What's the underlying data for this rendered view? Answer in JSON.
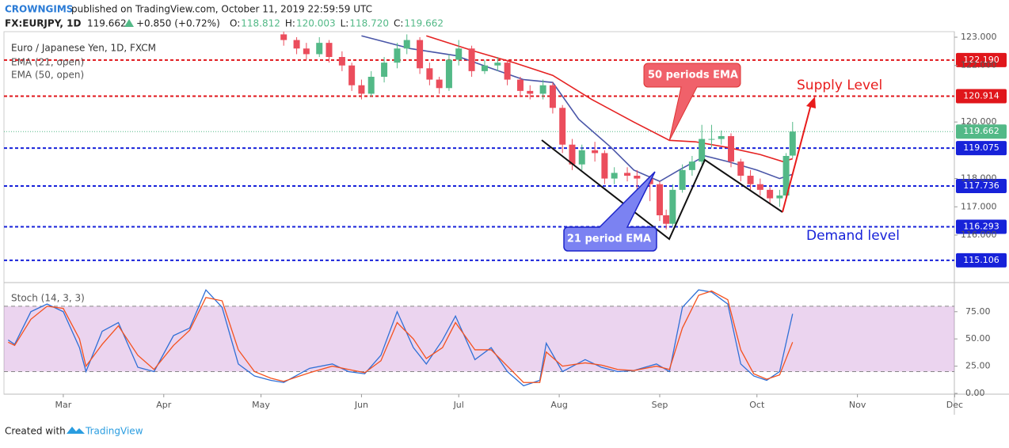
{
  "header": {
    "author": "CROWNGIMS",
    "published": "published on TradingView.com, October 11, 2019 22:59:59 UTC",
    "symbol": "FX:EURJPY, 1D",
    "price": "119.662",
    "change": "+0.850 (+0.72%)",
    "ohlc": [
      {
        "key": "O:",
        "value": "118.812"
      },
      {
        "key": "H:",
        "value": "120.003"
      },
      {
        "key": "L:",
        "value": "118.720"
      },
      {
        "key": "C:",
        "value": "119.662"
      }
    ]
  },
  "footer": {
    "created": "Created with",
    "brand": "TradingView"
  },
  "chart_data": [
    {
      "type": "candlestick",
      "title": "Euro / Japanese Yen, 1D, FXCM",
      "xlim": [
        -18.3,
        274.9
      ],
      "ylim": [
        114.376,
        123.196
      ],
      "yticks": [
        {
          "value": 123,
          "label": "123.000"
        },
        {
          "value": 122,
          "label": "122.000"
        },
        {
          "value": 120,
          "label": "120.000"
        },
        {
          "value": 118,
          "label": "118.000"
        },
        {
          "value": 117,
          "label": "117.000"
        },
        {
          "value": 116,
          "label": "116.000"
        }
      ],
      "up_color": "#53b987",
      "down_color": "#eb4d5c",
      "x": [
        68,
        72,
        75,
        79,
        82,
        86,
        89,
        92,
        95,
        99,
        103,
        106,
        110,
        113,
        116,
        119,
        122,
        126,
        130,
        134,
        137,
        141,
        144,
        148,
        151,
        154,
        157,
        160,
        164,
        167,
        170,
        174,
        177,
        181,
        184,
        186,
        188,
        191,
        194,
        197,
        200,
        203,
        206,
        209,
        212,
        215,
        218,
        221,
        223,
        225
      ],
      "open": [
        123.1,
        122.9,
        122.6,
        122.4,
        122.8,
        122.3,
        122.0,
        121.3,
        121.0,
        121.6,
        122.1,
        122.6,
        122.9,
        121.9,
        121.5,
        121.2,
        122.2,
        122.6,
        121.8,
        122.0,
        122.1,
        121.5,
        121.1,
        121.0,
        121.3,
        120.5,
        119.2,
        118.5,
        119.0,
        118.9,
        118.0,
        118.2,
        118.1,
        118.0,
        117.8,
        116.7,
        116.4,
        117.6,
        118.3,
        118.6,
        119.4,
        119.4,
        119.5,
        118.6,
        118.1,
        117.8,
        117.6,
        117.3,
        117.4,
        118.812
      ],
      "high": [
        123.3,
        123.0,
        122.8,
        123.0,
        122.9,
        122.5,
        122.1,
        121.5,
        121.8,
        122.3,
        122.8,
        123.1,
        123.0,
        122.1,
        121.6,
        122.4,
        122.9,
        122.7,
        122.2,
        122.3,
        122.2,
        121.6,
        121.3,
        121.5,
        121.4,
        120.6,
        119.4,
        119.2,
        119.3,
        119.0,
        118.4,
        118.4,
        118.3,
        118.1,
        117.9,
        116.9,
        117.8,
        118.5,
        118.8,
        119.9,
        119.9,
        119.7,
        119.6,
        118.7,
        118.3,
        118.0,
        117.7,
        117.6,
        118.9,
        120.003
      ],
      "low": [
        122.7,
        122.4,
        122.2,
        122.3,
        122.1,
        121.8,
        121.1,
        120.8,
        120.9,
        121.4,
        121.9,
        122.4,
        121.7,
        121.3,
        121.0,
        121.1,
        122.0,
        121.6,
        121.7,
        121.8,
        121.3,
        120.9,
        120.8,
        120.8,
        120.3,
        118.9,
        118.3,
        118.3,
        118.6,
        117.8,
        117.8,
        117.9,
        117.6,
        117.2,
        116.5,
        116.2,
        116.3,
        117.5,
        118.1,
        118.5,
        119.1,
        119.2,
        118.4,
        117.9,
        117.6,
        117.4,
        117.1,
        117.0,
        117.3,
        118.72
      ],
      "close": [
        122.9,
        122.6,
        122.4,
        122.8,
        122.3,
        122.0,
        121.3,
        121.0,
        121.6,
        122.1,
        122.6,
        122.9,
        121.9,
        121.5,
        121.2,
        122.2,
        122.6,
        121.8,
        122.0,
        122.1,
        121.5,
        121.1,
        121.0,
        121.3,
        120.5,
        119.2,
        118.5,
        119.0,
        118.9,
        118.0,
        118.2,
        118.1,
        118.0,
        117.8,
        116.7,
        116.4,
        117.6,
        118.3,
        118.6,
        119.4,
        119.4,
        119.5,
        118.6,
        118.1,
        117.8,
        117.6,
        117.3,
        117.4,
        118.8,
        119.662
      ],
      "series": [
        {
          "name": "EMA (21, open)",
          "color": "#4a56a8",
          "x": [
            92,
            107,
            121,
            132,
            142,
            151,
            159,
            169,
            176,
            184,
            190,
            198,
            205,
            214,
            221,
            225
          ],
          "values": [
            123.05,
            122.6,
            122.35,
            121.9,
            121.5,
            121.4,
            120.1,
            119.1,
            118.3,
            117.9,
            118.3,
            118.8,
            118.6,
            118.3,
            118.0,
            118.15
          ]
        },
        {
          "name": "EMA (50, open)",
          "color": "#e52222",
          "x": [
            112,
            127,
            139,
            151,
            163,
            176,
            187,
            195,
            205,
            215,
            222,
            225
          ],
          "values": [
            123.05,
            122.5,
            122.1,
            121.65,
            120.8,
            120.0,
            119.35,
            119.3,
            119.1,
            118.85,
            118.6,
            118.7
          ]
        }
      ],
      "levels": [
        {
          "value": 122.19,
          "label": "122.190",
          "color": "#e0161b"
        },
        {
          "value": 120.914,
          "label": "120.914",
          "color": "#e0161b"
        },
        {
          "value": 119.075,
          "label": "119.075",
          "color": "#1722d9"
        },
        {
          "value": 117.736,
          "label": "117.736",
          "color": "#1722d9"
        },
        {
          "value": 116.293,
          "label": "116.293",
          "color": "#1722d9"
        },
        {
          "value": 115.106,
          "label": "115.106",
          "color": "#1722d9"
        }
      ],
      "last_price": {
        "value": 119.662,
        "label": "119.662",
        "color": "#53b987"
      },
      "annotations": [
        "50 periods EMA",
        "21 period EMA",
        "Supply Level",
        "Demand level"
      ]
    },
    {
      "type": "line",
      "title": "Stoch (14, 3, 3)",
      "xlim": [
        -18.3,
        274.9
      ],
      "ylim": [
        0,
        101
      ],
      "yticks": [
        {
          "value": 75,
          "label": "75.00"
        },
        {
          "value": 50,
          "label": "50.00"
        },
        {
          "value": 25,
          "label": "25.00"
        },
        {
          "value": 0,
          "label": "0.00"
        }
      ],
      "xticks": [
        {
          "value": 0,
          "label": "Mar"
        },
        {
          "value": 31,
          "label": "Apr"
        },
        {
          "value": 61,
          "label": "May"
        },
        {
          "value": 92,
          "label": "Jun"
        },
        {
          "value": 122,
          "label": "Jul"
        },
        {
          "value": 153,
          "label": "Aug"
        },
        {
          "value": 184,
          "label": "Sep"
        },
        {
          "value": 214,
          "label": "Oct"
        },
        {
          "value": 245,
          "label": "Nov"
        },
        {
          "value": 275,
          "label": "Dec"
        }
      ],
      "band": [
        20,
        80
      ],
      "band_color": "#9c27b0",
      "x": [
        -17,
        -15,
        -10,
        -5,
        0,
        5,
        7,
        12,
        17,
        23,
        28,
        34,
        39,
        44,
        49,
        54,
        59,
        64,
        68,
        76,
        83,
        88,
        93,
        98,
        103,
        108,
        112,
        117,
        121,
        127,
        132,
        137,
        142,
        147,
        149,
        154,
        161,
        166,
        171,
        176,
        183,
        187,
        191,
        196,
        200,
        205,
        209,
        213,
        217,
        221,
        225
      ],
      "series": [
        {
          "color": "#2f6fd6",
          "values": [
            49,
            45,
            75,
            82,
            75,
            42,
            20,
            57,
            65,
            24,
            20,
            53,
            60,
            95,
            79,
            27,
            16,
            12,
            10,
            23,
            27,
            20,
            18,
            35,
            75,
            42,
            27,
            49,
            71,
            31,
            42,
            20,
            7,
            12,
            46,
            20,
            31,
            24,
            20,
            21,
            27,
            20,
            79,
            95,
            93,
            82,
            27,
            16,
            12,
            20,
            73
          ]
        },
        {
          "color": "#f4511e",
          "values": [
            47,
            44,
            68,
            80,
            78,
            50,
            25,
            45,
            62,
            35,
            22,
            44,
            58,
            88,
            85,
            40,
            20,
            14,
            11,
            19,
            25,
            22,
            19,
            30,
            65,
            50,
            32,
            42,
            65,
            40,
            40,
            25,
            10,
            10,
            38,
            25,
            28,
            26,
            22,
            21,
            25,
            22,
            60,
            90,
            94,
            86,
            40,
            18,
            13,
            17,
            47
          ]
        }
      ]
    }
  ]
}
